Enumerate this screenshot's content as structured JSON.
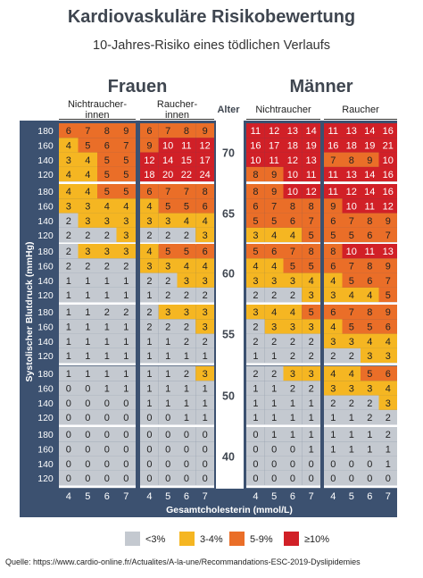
{
  "title": "Kardiovaskuläre Risikobewertung",
  "subtitle": "10-Jahres-Risiko eines tödlichen Verlaufs",
  "source": "Quelle: https://www.cardio-online.fr/Actualites/A-la-une/Recommandations-ESC-2019-Dyslipidemies",
  "chart_data": {
    "type": "heatmap",
    "title": "Kardiovaskuläre Risikobewertung",
    "subtitle": "10-Jahres-Risiko eines tödlichen Verlaufs",
    "sex_labels": [
      "Frauen",
      "Männer"
    ],
    "group_labels": [
      "Nichtraucher-\ninnen",
      "Raucher-\ninnen",
      "Nichtraucher",
      "Raucher"
    ],
    "age_header": "Alter",
    "ages": [
      "70",
      "65",
      "60",
      "55",
      "50",
      "40"
    ],
    "bp_values": [
      "180",
      "160",
      "140",
      "120"
    ],
    "cholesterol_values": [
      "4",
      "5",
      "6",
      "7"
    ],
    "ylabel": "Systolischer Blutdruck (mmHg)",
    "xlabel": "Gesamtcholesterin (mmol/L)",
    "legend": [
      {
        "label": "<3%",
        "color": "#c4c9d0"
      },
      {
        "label": "3-4%",
        "color": "#f5b622"
      },
      {
        "label": "5-9%",
        "color": "#ea6e28"
      },
      {
        "label": "≥10%",
        "color": "#d12027"
      }
    ],
    "values": {
      "70": [
        [
          [
            6,
            7,
            8,
            9
          ],
          [
            4,
            5,
            6,
            7
          ],
          [
            3,
            4,
            5,
            5
          ],
          [
            4,
            4,
            5,
            5
          ]
        ],
        [
          [
            6,
            7,
            8,
            9
          ],
          [
            9,
            10,
            11,
            12
          ],
          [
            12,
            14,
            15,
            17
          ],
          [
            18,
            20,
            22,
            24
          ]
        ],
        [
          [
            11,
            12,
            13,
            14
          ],
          [
            16,
            17,
            18,
            19
          ],
          [
            10,
            11,
            12,
            13
          ],
          [
            8,
            9,
            10,
            11
          ]
        ],
        [
          [
            11,
            13,
            14,
            16
          ],
          [
            16,
            18,
            19,
            21
          ],
          [
            7,
            8,
            9,
            10
          ],
          [
            11,
            13,
            14,
            16
          ]
        ]
      ],
      "65": [
        [
          [
            4,
            4,
            5,
            5
          ],
          [
            3,
            3,
            4,
            4
          ],
          [
            2,
            3,
            3,
            3
          ],
          [
            2,
            2,
            2,
            3
          ]
        ],
        [
          [
            6,
            7,
            7,
            8
          ],
          [
            4,
            5,
            5,
            6
          ],
          [
            3,
            3,
            4,
            4
          ],
          [
            2,
            2,
            2,
            3
          ]
        ],
        [
          [
            8,
            9,
            10,
            12
          ],
          [
            6,
            7,
            8,
            8
          ],
          [
            5,
            5,
            6,
            7
          ],
          [
            3,
            4,
            4,
            5
          ]
        ],
        [
          [
            11,
            12,
            14,
            16
          ],
          [
            9,
            10,
            11,
            12
          ],
          [
            6,
            7,
            8,
            9
          ],
          [
            5,
            5,
            6,
            7
          ]
        ]
      ],
      "60": [
        [
          [
            2,
            3,
            3,
            3
          ],
          [
            2,
            2,
            2,
            2
          ],
          [
            1,
            1,
            1,
            1
          ],
          [
            1,
            1,
            1,
            1
          ]
        ],
        [
          [
            4,
            5,
            5,
            6
          ],
          [
            3,
            3,
            4,
            4
          ],
          [
            2,
            2,
            3,
            3
          ],
          [
            1,
            2,
            2,
            2
          ]
        ],
        [
          [
            5,
            6,
            7,
            8
          ],
          [
            4,
            4,
            5,
            5
          ],
          [
            3,
            3,
            3,
            4
          ],
          [
            2,
            2,
            2,
            3
          ]
        ],
        [
          [
            8,
            10,
            11,
            13
          ],
          [
            6,
            7,
            8,
            9
          ],
          [
            4,
            5,
            6,
            7
          ],
          [
            3,
            4,
            4,
            5
          ]
        ]
      ],
      "55": [
        [
          [
            1,
            1,
            2,
            2
          ],
          [
            1,
            1,
            1,
            1
          ],
          [
            1,
            1,
            1,
            1
          ],
          [
            1,
            1,
            1,
            1
          ]
        ],
        [
          [
            2,
            3,
            3,
            3
          ],
          [
            2,
            2,
            2,
            3
          ],
          [
            1,
            1,
            2,
            2
          ],
          [
            1,
            1,
            1,
            1
          ]
        ],
        [
          [
            3,
            4,
            4,
            5
          ],
          [
            2,
            3,
            3,
            3
          ],
          [
            2,
            2,
            2,
            2
          ],
          [
            1,
            1,
            2,
            2
          ]
        ],
        [
          [
            6,
            7,
            8,
            9
          ],
          [
            4,
            5,
            5,
            6
          ],
          [
            3,
            3,
            4,
            4
          ],
          [
            2,
            2,
            3,
            3
          ]
        ]
      ],
      "50": [
        [
          [
            1,
            1,
            1,
            1
          ],
          [
            0,
            0,
            1,
            1
          ],
          [
            0,
            0,
            0,
            0
          ],
          [
            0,
            0,
            0,
            0
          ]
        ],
        [
          [
            1,
            1,
            2,
            3
          ],
          [
            1,
            1,
            1,
            1
          ],
          [
            1,
            1,
            1,
            1
          ],
          [
            0,
            0,
            1,
            1
          ]
        ],
        [
          [
            2,
            2,
            3,
            3
          ],
          [
            1,
            1,
            2,
            2
          ],
          [
            1,
            1,
            1,
            1
          ],
          [
            1,
            1,
            1,
            1
          ]
        ],
        [
          [
            4,
            4,
            5,
            6
          ],
          [
            3,
            3,
            3,
            4
          ],
          [
            2,
            2,
            2,
            3
          ],
          [
            1,
            1,
            2,
            2
          ]
        ]
      ],
      "40": [
        [
          [
            0,
            0,
            0,
            0
          ],
          [
            0,
            0,
            0,
            0
          ],
          [
            0,
            0,
            0,
            0
          ],
          [
            0,
            0,
            0,
            0
          ]
        ],
        [
          [
            0,
            0,
            0,
            0
          ],
          [
            0,
            0,
            0,
            0
          ],
          [
            0,
            0,
            0,
            0
          ],
          [
            0,
            0,
            0,
            0
          ]
        ],
        [
          [
            0,
            1,
            1,
            1
          ],
          [
            0,
            0,
            0,
            1
          ],
          [
            0,
            0,
            0,
            0
          ],
          [
            0,
            0,
            0,
            0
          ]
        ],
        [
          [
            1,
            1,
            1,
            2
          ],
          [
            1,
            1,
            1,
            1
          ],
          [
            0,
            0,
            0,
            1
          ],
          [
            0,
            0,
            0,
            0
          ]
        ]
      ]
    }
  }
}
